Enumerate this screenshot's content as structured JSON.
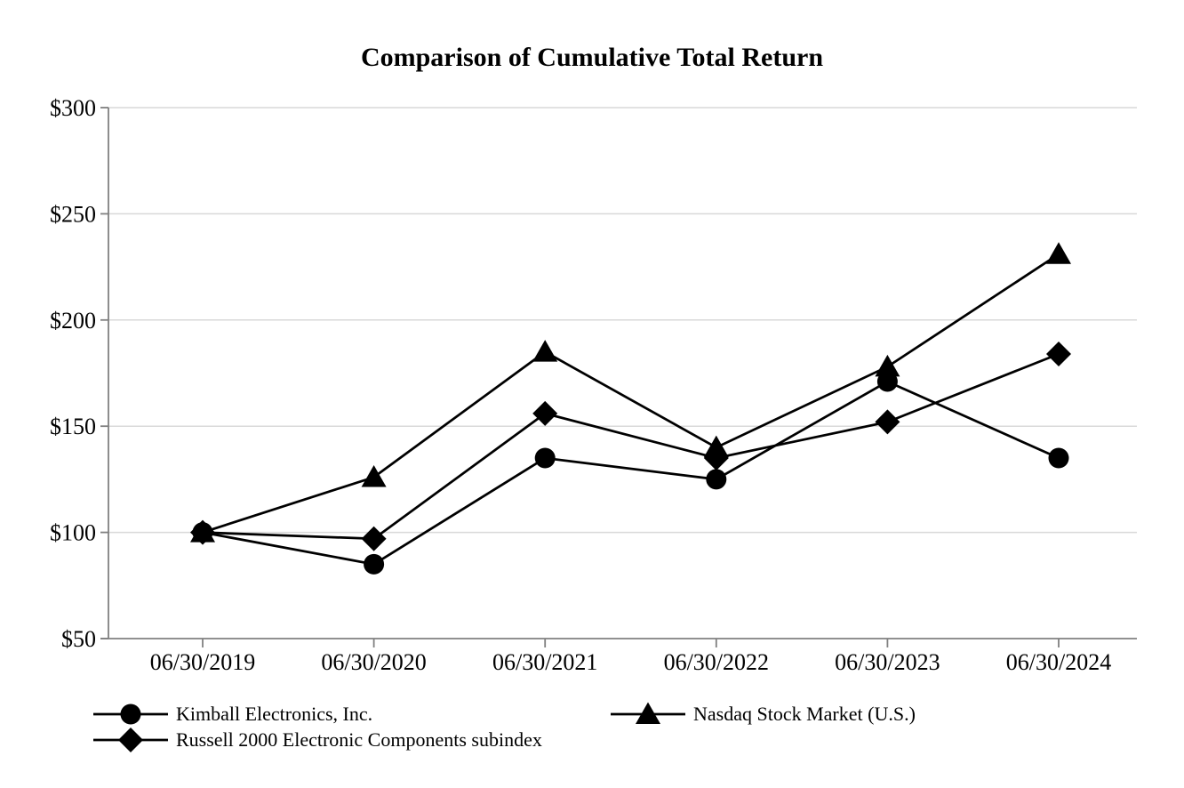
{
  "chart_data": {
    "type": "line",
    "title": "Comparison of Cumulative Total Return",
    "categories": [
      "06/30/2019",
      "06/30/2020",
      "06/30/2021",
      "06/30/2022",
      "06/30/2023",
      "06/30/2024"
    ],
    "series": [
      {
        "name": "Kimball Electronics, Inc.",
        "marker": "circle",
        "values": [
          100,
          85,
          135,
          125,
          171,
          135
        ]
      },
      {
        "name": "Nasdaq Stock Market (U.S.)",
        "marker": "triangle",
        "values": [
          100,
          126,
          185,
          140,
          178,
          231
        ]
      },
      {
        "name": "Russell 2000 Electronic Components subindex",
        "marker": "diamond",
        "values": [
          100,
          97,
          156,
          135,
          152,
          184
        ]
      }
    ],
    "xlabel": "",
    "ylabel": "",
    "ylim": [
      50,
      300
    ],
    "y_ticks": [
      300,
      250,
      200,
      150,
      100,
      50
    ],
    "y_tick_labels": [
      "$300",
      "$250",
      "$200",
      "$150",
      "$100",
      "$50"
    ],
    "grid": true,
    "legend_position": "bottom",
    "colors": {
      "series": "#000000",
      "gridline": "#d9d9d9",
      "axis": "#808080",
      "background": "#ffffff",
      "text": "#000000"
    }
  }
}
